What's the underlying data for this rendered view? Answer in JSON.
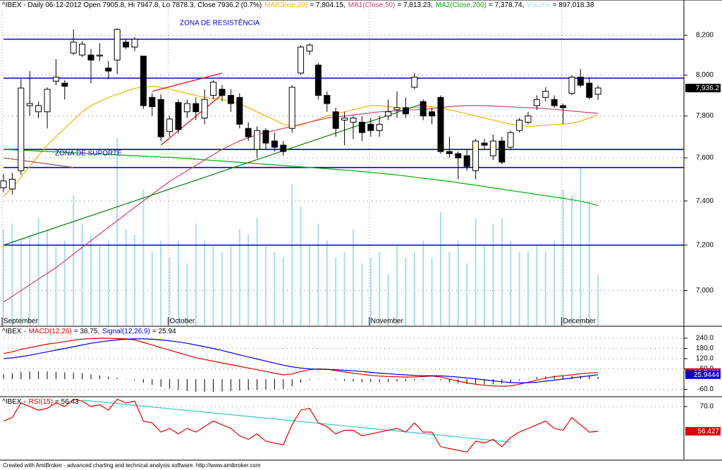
{
  "chart_data": [
    {
      "type": "candlestick",
      "title": "^IBEX - Daily 06-12-2012 Open 7905.8, Hi 7947.8, Lo 7878.3, Close 7936.2 (0.7%)",
      "categories": [
        "September",
        null,
        null,
        null,
        null,
        null,
        null,
        null,
        null,
        null,
        null,
        null,
        null,
        null,
        null,
        null,
        null,
        null,
        null,
        "October",
        null,
        null,
        null,
        null,
        null,
        null,
        null,
        null,
        null,
        null,
        null,
        null,
        null,
        null,
        null,
        null,
        null,
        null,
        null,
        null,
        null,
        null,
        "November",
        null,
        null,
        null,
        null,
        null,
        null,
        null,
        null,
        null,
        null,
        null,
        null,
        null,
        null,
        null,
        null,
        null,
        null,
        null,
        null,
        null,
        "December",
        null,
        null,
        null,
        null
      ],
      "open": [
        7460,
        7455,
        7540,
        7850,
        7820,
        7820,
        7970,
        7960,
        8110,
        8100,
        8100,
        8095,
        8035,
        8075,
        8165,
        8140,
        8095,
        7890,
        7880,
        7725,
        7865,
        7820,
        7860,
        7790,
        7900,
        7930,
        7900,
        7890,
        7740,
        7640,
        7730,
        7680,
        7660,
        7740,
        8010,
        8120,
        8050,
        7900,
        7820,
        7780,
        7770,
        7770,
        7760,
        7730,
        7800,
        7830,
        7840,
        7940,
        7870,
        7820,
        7890,
        7630,
        7620,
        7610,
        7540,
        7670,
        7610,
        7680,
        7650,
        7730,
        7770,
        7850,
        7890,
        7880,
        7850,
        7910,
        7990,
        7960,
        7905.8
      ],
      "high": [
        7525,
        7530,
        7980,
        8020,
        7870,
        7940,
        8080,
        7975,
        8230,
        8170,
        8130,
        8160,
        8070,
        8235,
        8180,
        8190,
        8095,
        7910,
        7905,
        7800,
        7880,
        7880,
        7890,
        7930,
        7975,
        7950,
        7930,
        7910,
        7770,
        7750,
        7740,
        7720,
        7680,
        7950,
        8150,
        8160,
        8060,
        7920,
        7840,
        7820,
        7800,
        7800,
        7790,
        7800,
        7880,
        7920,
        7890,
        8010,
        7880,
        7840,
        7900,
        7700,
        7630,
        7640,
        7690,
        7690,
        7710,
        7700,
        7730,
        7790,
        7820,
        7900,
        7940,
        7900,
        7860,
        8000,
        8030,
        7990,
        7947.8
      ],
      "low": [
        7440,
        7430,
        7520,
        7800,
        7790,
        7740,
        7950,
        7880,
        8100,
        8090,
        7960,
        8070,
        7980,
        8005,
        8130,
        8120,
        7835,
        7800,
        7680,
        7700,
        7715,
        7790,
        7780,
        7760,
        7880,
        7870,
        7820,
        7740,
        7680,
        7600,
        7640,
        7630,
        7610,
        7720,
        8000,
        8100,
        7880,
        7820,
        7700,
        7660,
        7690,
        7680,
        7700,
        7700,
        7780,
        7790,
        7790,
        7930,
        7780,
        7760,
        7620,
        7600,
        7500,
        7540,
        7500,
        7640,
        7590,
        7570,
        7640,
        7720,
        7760,
        7830,
        7870,
        7840,
        7760,
        7900,
        7940,
        7880,
        7878.3
      ],
      "close": [
        7492,
        7500,
        7936,
        7860,
        7850,
        7930,
        7990,
        7945,
        8165,
        8155,
        8075,
        8100,
        8020,
        8230,
        8140,
        8180,
        7850,
        7845,
        7700,
        7785,
        7735,
        7860,
        7820,
        7880,
        7965,
        7900,
        7860,
        7760,
        7700,
        7730,
        7670,
        7650,
        7630,
        7940,
        8140,
        8150,
        7900,
        7860,
        7740,
        7790,
        7790,
        7720,
        7730,
        7760,
        7820,
        7840,
        7810,
        7990,
        7800,
        7800,
        7630,
        7620,
        7600,
        7560,
        7680,
        7660,
        7680,
        7580,
        7720,
        7780,
        7800,
        7880,
        7920,
        7850,
        7840,
        7990,
        7950,
        7890,
        7936.2
      ],
      "series": [
        {
          "name": "MA(Close,20)",
          "legend_text": "= 7,804.15,",
          "color": "#f0b400",
          "values": [
            7420,
            7460,
            7510,
            7560,
            7610,
            7660,
            7700,
            7740,
            7780,
            7820,
            7850,
            7870,
            7890,
            7905,
            7920,
            7935,
            7940,
            7945,
            7940,
            7930,
            7920,
            7910,
            7900,
            7890,
            7885,
            7880,
            7870,
            7860,
            7840,
            7820,
            7800,
            7780,
            7760,
            7750,
            7755,
            7770,
            7785,
            7800,
            7810,
            7820,
            7830,
            7840,
            7850,
            7850,
            7845,
            7840,
            7838,
            7840,
            7845,
            7845,
            7840,
            7830,
            7820,
            7810,
            7800,
            7790,
            7780,
            7770,
            7760,
            7755,
            7750,
            7752,
            7755,
            7760,
            7760,
            7765,
            7775,
            7790,
            7804.15
          ]
        },
        {
          "name": "MA1(Close,50)",
          "legend_text": "= 7,813.23,",
          "color": "#d0407a",
          "values": [
            6950,
            6975,
            7000,
            7025,
            7050,
            7075,
            7100,
            7130,
            7160,
            7190,
            7220,
            7250,
            7280,
            7310,
            7340,
            7370,
            7400,
            7430,
            7460,
            7490,
            7515,
            7540,
            7565,
            7590,
            7615,
            7640,
            7660,
            7680,
            7695,
            7710,
            7720,
            7730,
            7740,
            7750,
            7760,
            7770,
            7780,
            7790,
            7795,
            7800,
            7805,
            7810,
            7815,
            7820,
            7822,
            7825,
            7828,
            7830,
            7832,
            7835,
            7840,
            7845,
            7848,
            7850,
            7850,
            7850,
            7848,
            7846,
            7844,
            7842,
            7840,
            7838,
            7835,
            7832,
            7828,
            7824,
            7820,
            7816,
            7813.23
          ]
        },
        {
          "name": "MA2(Close,200)",
          "legend_text": "= 7,378.74,",
          "color": "#00b000",
          "values": [
            7640,
            7638,
            7636,
            7634,
            7632,
            7630,
            7628,
            7626,
            7624,
            7622,
            7620,
            7618,
            7616,
            7614,
            7612,
            7610,
            7608,
            7606,
            7604,
            7602,
            7600,
            7597,
            7594,
            7591,
            7588,
            7585,
            7582,
            7579,
            7576,
            7573,
            7570,
            7567,
            7564,
            7561,
            7558,
            7555,
            7552,
            7549,
            7546,
            7543,
            7540,
            7536,
            7532,
            7528,
            7524,
            7520,
            7515,
            7510,
            7505,
            7500,
            7495,
            7490,
            7484,
            7478,
            7472,
            7466,
            7460,
            7454,
            7448,
            7442,
            7436,
            7430,
            7424,
            7418,
            7412,
            7406,
            7398,
            7390,
            7378.74
          ]
        }
      ],
      "volume": {
        "name": "Volume",
        "legend_text": "= 897,018.38",
        "color": "#a8dcf0",
        "values": [
          1700000,
          1800000,
          1500000,
          1600000,
          1900000,
          1700000,
          1400000,
          1500000,
          2300000,
          1800000,
          1600000,
          1400000,
          1500000,
          3300000,
          1700000,
          1600000,
          2400000,
          1300000,
          1500000,
          1200000,
          1500000,
          1100000,
          1800000,
          1500000,
          1400000,
          1300000,
          1400000,
          1700000,
          1600000,
          1900000,
          1400000,
          1300000,
          1200000,
          2500000,
          2100000,
          1400000,
          1800000,
          1500000,
          1200000,
          1300000,
          1700000,
          1100000,
          1200000,
          1300000,
          900000,
          1400000,
          1200000,
          1300000,
          1500000,
          1200000,
          2000000,
          1300000,
          1500000,
          1100000,
          1900000,
          1400000,
          1800000,
          1900000,
          1500000,
          1300000,
          1300000,
          1400000,
          1300000,
          1500000,
          2400000,
          2300000,
          2800000,
          2200000,
          897018.38
        ]
      },
      "hlines": {
        "color": "#0000dd",
        "values": [
          8180,
          7985,
          7640,
          7555,
          7200
        ]
      },
      "trendlines": [
        {
          "x": [
            0,
            48
          ],
          "y": [
            7200,
            7860
          ],
          "color": "#008000"
        },
        {
          "x": [
            18,
            25
          ],
          "y": [
            7660,
            7905
          ],
          "color": "#e00000"
        },
        {
          "x": [
            17,
            25
          ],
          "y": [
            7920,
            8010
          ],
          "color": "#e00000"
        },
        {
          "x": [
            0,
            8
          ],
          "y": [
            7600,
            7555
          ],
          "color": "#a05050"
        }
      ],
      "annotations": [
        "ZONA DE RESISTÊNCIA",
        "ZONA DE SUPORTE"
      ],
      "last_label": {
        "value": 7936.2,
        "label": "7,936.2"
      },
      "log": true,
      "grid": true,
      "ylim": [
        6850,
        8330
      ],
      "yticks": [
        {
          "value": 7000,
          "label": "7,000"
        },
        {
          "value": 7200,
          "label": "7,200"
        },
        {
          "value": 7400,
          "label": "7,400"
        },
        {
          "value": 7600,
          "label": "7,600"
        },
        {
          "value": 7800,
          "label": "7,800"
        },
        {
          "value": 8000,
          "label": "8,000"
        },
        {
          "value": 8200,
          "label": "8,200"
        }
      ]
    },
    {
      "type": "line",
      "title": "^IBEX -",
      "series": [
        {
          "name": "MACD(12,26)",
          "legend_text": "= 38.75,",
          "color": "#e00000",
          "last_value": 38.7488,
          "values": [
            150,
            160,
            175,
            185,
            195,
            205,
            212,
            220,
            228,
            235,
            238,
            240,
            240,
            238,
            236,
            230,
            215,
            200,
            185,
            170,
            155,
            140,
            125,
            115,
            105,
            95,
            85,
            75,
            65,
            55,
            45,
            35,
            25,
            30,
            45,
            55,
            60,
            58,
            50,
            42,
            35,
            28,
            22,
            18,
            15,
            14,
            12,
            13,
            15,
            18,
            12,
            0,
            -12,
            -22,
            -30,
            -36,
            -40,
            -42,
            -40,
            -30,
            -18,
            -5,
            5,
            15,
            20,
            25,
            32,
            36,
            38.75
          ]
        },
        {
          "name": "Signal(12,26,9)",
          "legend_text": "= 25.94",
          "color": "#0000e0",
          "last_value": 25.9444,
          "values": [
            120,
            125,
            132,
            140,
            150,
            160,
            170,
            180,
            190,
            200,
            210,
            218,
            225,
            230,
            234,
            236,
            236,
            234,
            230,
            225,
            218,
            210,
            200,
            190,
            180,
            168,
            155,
            142,
            130,
            118,
            106,
            94,
            82,
            72,
            65,
            60,
            58,
            57,
            55,
            52,
            49,
            45,
            40,
            35,
            32,
            28,
            25,
            22,
            20,
            20,
            19,
            16,
            12,
            7,
            2,
            -4,
            -10,
            -15,
            -20,
            -22,
            -21,
            -18,
            -12,
            -6,
            0,
            7,
            13,
            19,
            25.94
          ]
        }
      ],
      "histogram": {
        "color": "#000000",
        "values": [
          30,
          35,
          43,
          45,
          45,
          45,
          42,
          40,
          38,
          35,
          28,
          22,
          15,
          8,
          2,
          -6,
          -21,
          -34,
          -45,
          -55,
          -63,
          -70,
          -75,
          -75,
          -75,
          -73,
          -70,
          -67,
          -65,
          -63,
          -61,
          -59,
          -57,
          -42,
          -20,
          -5,
          2,
          1,
          -5,
          -10,
          -14,
          -17,
          -18,
          -17,
          -17,
          -14,
          -13,
          -9,
          -5,
          -2,
          -7,
          -16,
          -24,
          -29,
          -32,
          -32,
          -30,
          -27,
          -20,
          -8,
          3,
          13,
          17,
          21,
          20,
          18,
          19,
          17,
          12.81
        ]
      },
      "grid": true,
      "ylim": [
        -99,
        306
      ],
      "yticks": [
        {
          "value": -60,
          "label": "-60.0"
        },
        {
          "value": 60,
          "label": "60.0"
        },
        {
          "value": 120,
          "label": "120.0"
        },
        {
          "value": 180,
          "label": "180.0"
        },
        {
          "value": 240,
          "label": "240.0"
        }
      ]
    },
    {
      "type": "line",
      "title": "^IBEX -",
      "series": [
        {
          "name": "RSI(15)",
          "legend_text": "= 56.43",
          "color": "#e00000",
          "last_value": 56.427,
          "values": [
            62,
            64,
            72,
            70,
            68,
            69,
            72,
            70,
            74,
            73,
            70,
            71,
            68,
            74,
            72,
            73,
            62,
            61,
            56,
            58,
            55,
            58,
            56,
            59,
            62,
            60,
            58,
            54,
            52,
            55,
            51,
            50,
            49,
            60,
            68,
            69,
            61,
            59,
            55,
            57,
            57,
            54,
            55,
            56,
            57,
            58,
            56,
            61,
            56,
            56,
            48,
            47,
            46,
            45,
            51,
            50,
            52,
            48,
            53,
            56,
            58,
            60,
            62,
            58,
            57,
            64,
            60,
            56,
            56.43
          ]
        }
      ],
      "trendlines": [
        {
          "x": [
            9,
            58
          ],
          "y": [
            73.5,
            50.5
          ],
          "color": "#30c8c8"
        }
      ],
      "grid": true,
      "ylim": [
        41,
        75
      ],
      "yticks": [
        {
          "value": 70,
          "label": "70.0"
        }
      ]
    }
  ],
  "footer": "Created with AmiBroker - advanced charting and technical analysis software. http://www.amibroker.com"
}
